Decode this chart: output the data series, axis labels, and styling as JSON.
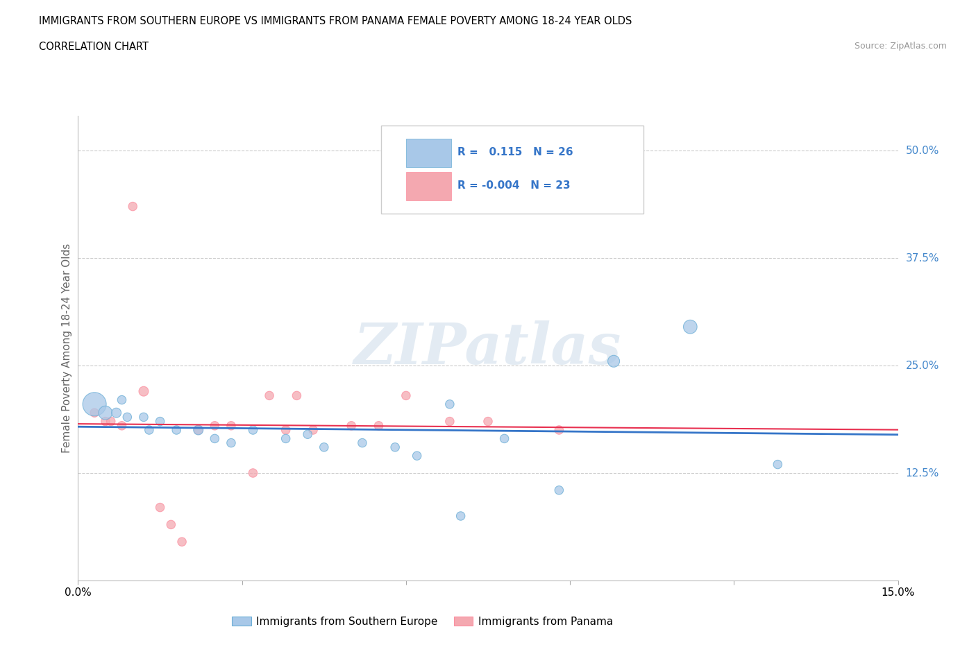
{
  "title": "IMMIGRANTS FROM SOUTHERN EUROPE VS IMMIGRANTS FROM PANAMA FEMALE POVERTY AMONG 18-24 YEAR OLDS",
  "subtitle": "CORRELATION CHART",
  "source": "Source: ZipAtlas.com",
  "ylabel": "Female Poverty Among 18-24 Year Olds",
  "xlim": [
    0.0,
    0.15
  ],
  "ylim": [
    0.0,
    0.54
  ],
  "yticks": [
    0.0,
    0.125,
    0.25,
    0.375,
    0.5
  ],
  "ytick_labels": [
    "",
    "12.5%",
    "25.0%",
    "37.5%",
    "50.0%"
  ],
  "xticks": [
    0.0,
    0.03,
    0.06,
    0.09,
    0.12,
    0.15
  ],
  "xtick_labels": [
    "0.0%",
    "",
    "",
    "",
    "",
    "15.0%"
  ],
  "blue_R": "0.115",
  "blue_N": "26",
  "pink_R": "-0.004",
  "pink_N": "23",
  "blue_color": "#a8c8e8",
  "pink_color": "#f4a8b0",
  "blue_edge_color": "#6baed6",
  "pink_edge_color": "#fc8fa0",
  "blue_line_color": "#3575c8",
  "pink_line_color": "#e83050",
  "tick_label_color": "#4488cc",
  "watermark_text": "ZIPatlas",
  "legend_label_blue": "Immigrants from Southern Europe",
  "legend_label_pink": "Immigrants from Panama",
  "blue_points": [
    [
      0.003,
      0.205
    ],
    [
      0.005,
      0.195
    ],
    [
      0.007,
      0.195
    ],
    [
      0.008,
      0.21
    ],
    [
      0.009,
      0.19
    ],
    [
      0.012,
      0.19
    ],
    [
      0.013,
      0.175
    ],
    [
      0.015,
      0.185
    ],
    [
      0.018,
      0.175
    ],
    [
      0.022,
      0.175
    ],
    [
      0.025,
      0.165
    ],
    [
      0.028,
      0.16
    ],
    [
      0.032,
      0.175
    ],
    [
      0.038,
      0.165
    ],
    [
      0.042,
      0.17
    ],
    [
      0.045,
      0.155
    ],
    [
      0.052,
      0.16
    ],
    [
      0.058,
      0.155
    ],
    [
      0.062,
      0.145
    ],
    [
      0.068,
      0.205
    ],
    [
      0.07,
      0.075
    ],
    [
      0.078,
      0.165
    ],
    [
      0.088,
      0.105
    ],
    [
      0.098,
      0.255
    ],
    [
      0.112,
      0.295
    ],
    [
      0.128,
      0.135
    ]
  ],
  "pink_points": [
    [
      0.003,
      0.195
    ],
    [
      0.005,
      0.185
    ],
    [
      0.006,
      0.185
    ],
    [
      0.008,
      0.18
    ],
    [
      0.01,
      0.435
    ],
    [
      0.012,
      0.22
    ],
    [
      0.015,
      0.085
    ],
    [
      0.017,
      0.065
    ],
    [
      0.019,
      0.045
    ],
    [
      0.022,
      0.175
    ],
    [
      0.025,
      0.18
    ],
    [
      0.028,
      0.18
    ],
    [
      0.032,
      0.125
    ],
    [
      0.035,
      0.215
    ],
    [
      0.038,
      0.175
    ],
    [
      0.04,
      0.215
    ],
    [
      0.043,
      0.175
    ],
    [
      0.05,
      0.18
    ],
    [
      0.055,
      0.18
    ],
    [
      0.06,
      0.215
    ],
    [
      0.068,
      0.185
    ],
    [
      0.075,
      0.185
    ],
    [
      0.088,
      0.175
    ]
  ],
  "blue_sizes": [
    600,
    200,
    100,
    80,
    80,
    80,
    80,
    80,
    80,
    100,
    80,
    80,
    80,
    80,
    80,
    80,
    80,
    80,
    80,
    80,
    80,
    80,
    80,
    150,
    200,
    80
  ],
  "pink_sizes": [
    80,
    80,
    80,
    80,
    80,
    100,
    80,
    80,
    80,
    80,
    80,
    80,
    80,
    80,
    80,
    80,
    80,
    80,
    80,
    80,
    80,
    80,
    80
  ]
}
